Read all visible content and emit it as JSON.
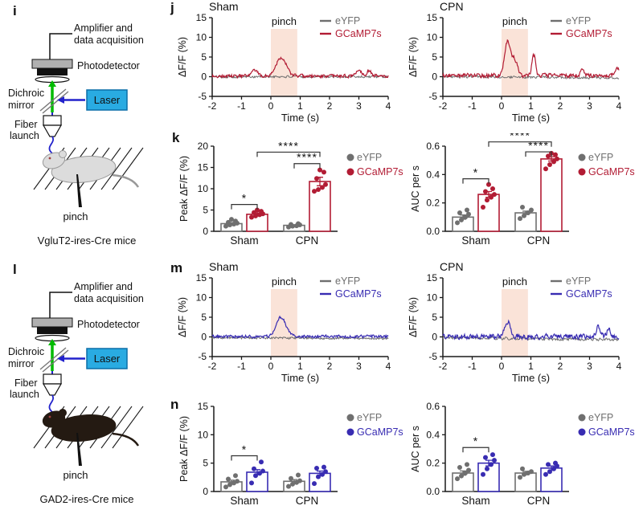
{
  "figure": {
    "panels": {
      "i": {
        "letter": "i",
        "mice_label": "VgluT2-ires-Cre mice"
      },
      "j": {
        "letter": "j"
      },
      "k": {
        "letter": "k"
      },
      "l": {
        "letter": "l",
        "mice_label": "GAD2-ires-Cre mice"
      },
      "m": {
        "letter": "m"
      },
      "n": {
        "letter": "n"
      }
    }
  },
  "colors": {
    "gray": "#6f6f6f",
    "red": "#b21c34",
    "blue": "#382cb2",
    "stim": "#fae3d8",
    "axis": "#1a1a1a",
    "laser_fill": "#29abe2",
    "laser_border": "#0b6ea8",
    "beam_green": "#00bb00",
    "beam_blue": "#2222cc",
    "mouse_light_fill": "#dcdcdc",
    "mouse_light_stroke": "#999999",
    "mouse_dark_fill": "#241a12",
    "mouse_dark_stroke": "#241a12"
  },
  "schematic": {
    "amplifier_line1": "Amplifier and",
    "amplifier_line2": "data acquisition",
    "photodetector": "Photodetector",
    "dichroic_line1": "Dichroic",
    "dichroic_line2": "mirror",
    "laser": "Laser",
    "fiber_line1": "Fiber",
    "fiber_line2": "launch",
    "pinch": "pinch"
  },
  "chart_data": [
    {
      "id": "j-sham",
      "type": "line",
      "title": "Sham",
      "xlabel": "Time (s)",
      "ylabel": "ΔF/F (%)",
      "xlim": [
        -2,
        4
      ],
      "ylim": [
        -5,
        15
      ],
      "xticks": [
        -2,
        -1,
        0,
        1,
        2,
        3,
        4
      ],
      "ytick_vals": [
        -5,
        0,
        5,
        10,
        15
      ],
      "ytick_labels": [
        "-5",
        "0",
        "5",
        "10",
        "15"
      ],
      "stim_window": [
        0,
        0.9
      ],
      "stim_label": "pinch",
      "legend": [
        {
          "label": "eYFP",
          "color": "gray"
        },
        {
          "label": "GCaMP7s",
          "color": "red"
        }
      ],
      "series": [
        {
          "name": "eYFP",
          "color": "gray",
          "seed": 101,
          "noise": 0.4,
          "offset": 0,
          "drift": 0,
          "peaks": []
        },
        {
          "name": "GCaMP7s",
          "color": "red",
          "seed": 202,
          "noise": 0.55,
          "offset": 0.15,
          "drift": 0,
          "peaks": [
            {
              "t": -0.55,
              "h": 1.5,
              "w": 0.09
            },
            {
              "t": 0.35,
              "h": 4.8,
              "w": 0.17
            },
            {
              "t": 3.0,
              "h": 1.5,
              "w": 0.1
            },
            {
              "t": 3.35,
              "h": 1.4,
              "w": 0.08
            }
          ]
        }
      ]
    },
    {
      "id": "j-cpn",
      "type": "line",
      "title": "CPN",
      "xlabel": "Time (s)",
      "ylabel": "ΔF/F (%)",
      "xlim": [
        -2,
        4
      ],
      "ylim": [
        -5,
        15
      ],
      "xticks": [
        -2,
        -1,
        0,
        1,
        2,
        3,
        4
      ],
      "ytick_vals": [
        -5,
        0,
        5,
        10,
        15
      ],
      "ytick_labels": [
        "-5",
        "0",
        "5",
        "10",
        "15"
      ],
      "stim_window": [
        0,
        0.9
      ],
      "stim_label": "pinch",
      "legend": [
        {
          "label": "eYFP",
          "color": "gray"
        },
        {
          "label": "GCaMP7s",
          "color": "red"
        }
      ],
      "series": [
        {
          "name": "eYFP",
          "color": "gray",
          "seed": 303,
          "noise": 0.38,
          "offset": 0,
          "drift": -0.3,
          "peaks": []
        },
        {
          "name": "GCaMP7s",
          "color": "red",
          "seed": 404,
          "noise": 0.7,
          "offset": 0.3,
          "drift": 0,
          "peaks": [
            {
              "t": 0.2,
              "h": 8.6,
              "w": 0.1
            },
            {
              "t": 0.45,
              "h": 4.0,
              "w": 0.09
            },
            {
              "t": 1.1,
              "h": 5.2,
              "w": 0.06
            },
            {
              "t": 2.75,
              "h": 1.9,
              "w": 0.05
            },
            {
              "t": 3.95,
              "h": 1.5,
              "w": 0.1
            }
          ]
        }
      ]
    },
    {
      "id": "k-peak",
      "type": "bar",
      "ylabel": "Peak ΔF/F (%)",
      "ylim": [
        0,
        20
      ],
      "ytick_vals": [
        0,
        5,
        10,
        15,
        20
      ],
      "ytick_labels": [
        "0",
        "5",
        "10",
        "15",
        "20"
      ],
      "groups": [
        "Sham",
        "CPN"
      ],
      "legend": [
        {
          "label": "eYFP",
          "color": "gray"
        },
        {
          "label": "GCaMP7s",
          "color": "red"
        }
      ],
      "series": [
        {
          "name": "eYFP",
          "color": "gray",
          "means": [
            1.8,
            1.4
          ],
          "sems": [
            0.25,
            0.15
          ],
          "dots": [
            [
              1.2,
              1.5,
              1.7,
              1.9,
              2.1,
              2.4,
              2.8
            ],
            [
              1.0,
              1.2,
              1.3,
              1.5,
              1.6,
              1.8
            ]
          ]
        },
        {
          "name": "GCaMP7s",
          "color": "red",
          "means": [
            4.0,
            11.7
          ],
          "sems": [
            0.3,
            1.0
          ],
          "dots": [
            [
              3.3,
              3.6,
              3.9,
              4.1,
              4.4,
              4.7,
              5.0
            ],
            [
              9.4,
              9.8,
              10.3,
              11.0,
              12.4,
              13.9,
              14.4
            ]
          ]
        }
      ],
      "sig": [
        {
          "kind": "within",
          "group": 0,
          "label": "*",
          "y": 6.3
        },
        {
          "kind": "within",
          "group": 1,
          "label": "****",
          "y": 15.9
        },
        {
          "kind": "across",
          "label": "****",
          "y": 18.6
        }
      ]
    },
    {
      "id": "k-auc",
      "type": "bar",
      "ylabel": "AUC per s",
      "ylim": [
        0,
        0.6
      ],
      "ytick_vals": [
        0,
        0.2,
        0.4,
        0.6
      ],
      "ytick_labels": [
        "0.0",
        "0.2",
        "0.4",
        "0.6"
      ],
      "groups": [
        "Sham",
        "CPN"
      ],
      "legend": [
        {
          "label": "eYFP",
          "color": "gray"
        },
        {
          "label": "GCaMP7s",
          "color": "red"
        }
      ],
      "series": [
        {
          "name": "eYFP",
          "color": "gray",
          "means": [
            0.1,
            0.13
          ],
          "sems": [
            0.015,
            0.012
          ],
          "dots": [
            [
              0.06,
              0.08,
              0.1,
              0.12,
              0.13,
              0.15
            ],
            [
              0.09,
              0.11,
              0.13,
              0.15,
              0.17
            ]
          ]
        },
        {
          "name": "GCaMP7s",
          "color": "red",
          "means": [
            0.26,
            0.51
          ],
          "sems": [
            0.02,
            0.015
          ],
          "dots": [
            [
              0.17,
              0.22,
              0.24,
              0.26,
              0.28,
              0.3,
              0.33
            ],
            [
              0.44,
              0.47,
              0.49,
              0.51,
              0.53,
              0.54,
              0.55
            ]
          ]
        }
      ],
      "sig": [
        {
          "kind": "within",
          "group": 0,
          "label": "*",
          "y": 0.37
        },
        {
          "kind": "within",
          "group": 1,
          "label": "****",
          "y": 0.56
        },
        {
          "kind": "across",
          "label": "****",
          "y": 0.63
        }
      ]
    },
    {
      "id": "m-sham",
      "type": "line",
      "title": "Sham",
      "xlabel": "Time (s)",
      "ylabel": "ΔF/F (%)",
      "xlim": [
        -2,
        4
      ],
      "ylim": [
        -5,
        15
      ],
      "xticks": [
        -2,
        -1,
        0,
        1,
        2,
        3,
        4
      ],
      "ytick_vals": [
        -5,
        0,
        5,
        10,
        15
      ],
      "ytick_labels": [
        "-5",
        "0",
        "5",
        "10",
        "15"
      ],
      "stim_window": [
        0,
        0.9
      ],
      "stim_label": "pinch",
      "legend": [
        {
          "label": "eYFP",
          "color": "gray"
        },
        {
          "label": "GCaMP7s",
          "color": "blue"
        }
      ],
      "series": [
        {
          "name": "eYFP",
          "color": "gray",
          "seed": 505,
          "noise": 0.35,
          "offset": -0.2,
          "drift": -0.2,
          "peaks": []
        },
        {
          "name": "GCaMP7s",
          "color": "blue",
          "seed": 606,
          "noise": 0.5,
          "offset": 0.1,
          "drift": 0,
          "peaks": [
            {
              "t": 0.35,
              "h": 4.9,
              "w": 0.16
            }
          ]
        }
      ]
    },
    {
      "id": "m-cpn",
      "type": "line",
      "title": "CPN",
      "xlabel": "Time (s)",
      "ylabel": "ΔF/F (%)",
      "xlim": [
        -2,
        4
      ],
      "ylim": [
        -5,
        15
      ],
      "xticks": [
        -2,
        -1,
        0,
        1,
        2,
        3,
        4
      ],
      "ytick_vals": [
        -5,
        0,
        5,
        10,
        15
      ],
      "ytick_labels": [
        "-5",
        "0",
        "5",
        "10",
        "15"
      ],
      "stim_window": [
        0,
        0.9
      ],
      "stim_label": "pinch",
      "legend": [
        {
          "label": "eYFP",
          "color": "gray"
        },
        {
          "label": "GCaMP7s",
          "color": "blue"
        }
      ],
      "series": [
        {
          "name": "eYFP",
          "color": "gray",
          "seed": 707,
          "noise": 0.45,
          "offset": -0.2,
          "drift": -0.5,
          "peaks": []
        },
        {
          "name": "GCaMP7s",
          "color": "blue",
          "seed": 808,
          "noise": 0.85,
          "offset": 0.1,
          "drift": 0,
          "peaks": [
            {
              "t": 0.2,
              "h": 3.8,
              "w": 0.1
            },
            {
              "t": 3.3,
              "h": 2.4,
              "w": 0.07
            },
            {
              "t": 3.65,
              "h": 1.9,
              "w": 0.06
            }
          ]
        }
      ]
    },
    {
      "id": "n-peak",
      "type": "bar",
      "ylabel": "Peak ΔF/F (%)",
      "ylim": [
        0,
        15
      ],
      "ytick_vals": [
        0,
        5,
        10,
        15
      ],
      "ytick_labels": [
        "0",
        "5",
        "10",
        "15"
      ],
      "groups": [
        "Sham",
        "CPN"
      ],
      "legend": [
        {
          "label": "eYFP",
          "color": "gray"
        },
        {
          "label": "GCaMP7s",
          "color": "blue"
        }
      ],
      "series": [
        {
          "name": "eYFP",
          "color": "gray",
          "means": [
            1.7,
            1.8
          ],
          "sems": [
            0.3,
            0.3
          ],
          "dots": [
            [
              0.8,
              1.2,
              1.5,
              1.8,
              2.2,
              2.8
            ],
            [
              0.9,
              1.3,
              1.6,
              1.9,
              2.3,
              2.9
            ]
          ]
        },
        {
          "name": "GCaMP7s",
          "color": "blue",
          "means": [
            3.4,
            3.2
          ],
          "sems": [
            0.45,
            0.4
          ],
          "dots": [
            [
              1.5,
              2.8,
              3.2,
              3.6,
              4.0,
              5.2
            ],
            [
              1.4,
              2.6,
              3.0,
              3.5,
              4.1,
              4.3
            ]
          ]
        }
      ],
      "sig": [
        {
          "kind": "within",
          "group": 0,
          "label": "*",
          "y": 6.3
        }
      ]
    },
    {
      "id": "n-auc",
      "type": "bar",
      "ylabel": "AUC per s",
      "ylim": [
        0,
        0.6
      ],
      "ytick_vals": [
        0,
        0.2,
        0.4,
        0.6
      ],
      "ytick_labels": [
        "0.0",
        "0.2",
        "0.4",
        "0.6"
      ],
      "groups": [
        "Sham",
        "CPN"
      ],
      "legend": [
        {
          "label": "eYFP",
          "color": "gray"
        },
        {
          "label": "GCaMP7s",
          "color": "blue"
        }
      ],
      "series": [
        {
          "name": "eYFP",
          "color": "gray",
          "means": [
            0.13,
            0.13
          ],
          "sems": [
            0.015,
            0.012
          ],
          "dots": [
            [
              0.09,
              0.11,
              0.13,
              0.15,
              0.17,
              0.19
            ],
            [
              0.1,
              0.12,
              0.13,
              0.14,
              0.16
            ]
          ]
        },
        {
          "name": "GCaMP7s",
          "color": "blue",
          "means": [
            0.2,
            0.165
          ],
          "sems": [
            0.02,
            0.015
          ],
          "dots": [
            [
              0.12,
              0.16,
              0.19,
              0.22,
              0.24,
              0.26
            ],
            [
              0.12,
              0.14,
              0.16,
              0.18,
              0.19,
              0.2
            ]
          ]
        }
      ],
      "sig": [
        {
          "kind": "within",
          "group": 0,
          "label": "*",
          "y": 0.31
        }
      ]
    }
  ]
}
